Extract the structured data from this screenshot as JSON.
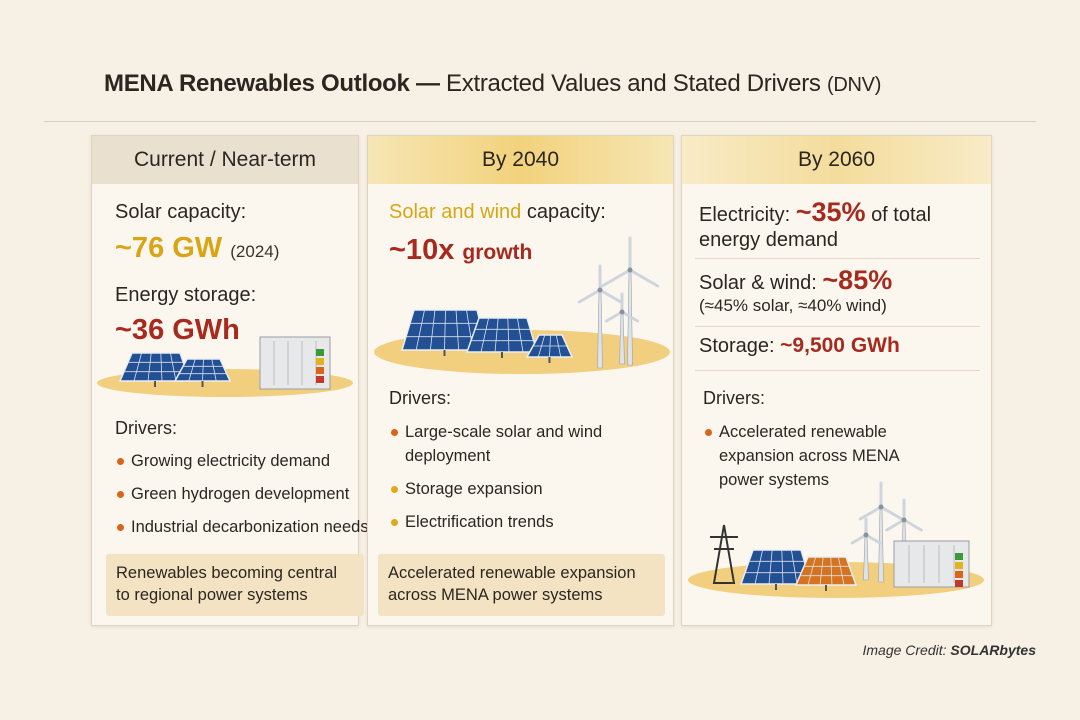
{
  "title": {
    "main": "MENA Renewables Outlook —",
    "sub": "Extracted Values and Stated Drivers",
    "source": "(DNV)"
  },
  "columns": [
    {
      "header": "Current / Near-term",
      "metrics": [
        {
          "label": "Solar capacity:",
          "value": "~76 GW",
          "note": "(2024)"
        },
        {
          "label": "Energy storage:",
          "value": "~36 GWh"
        }
      ],
      "drivers_label": "Drivers:",
      "drivers": [
        "Growing electricity demand",
        "Green hydrogen development",
        "Industrial decarbonization needs"
      ],
      "footer": "Renewables becoming central to regional power systems"
    },
    {
      "header": "By 2040",
      "metrics": [
        {
          "label_highlight": "Solar and wind",
          "label": "capacity:",
          "value": "~10x",
          "note": "growth"
        }
      ],
      "drivers_label": "Drivers:",
      "drivers": [
        "Large-scale solar and wind deployment",
        "Storage expansion",
        "Electrification trends"
      ],
      "footer": "Accelerated renewable expansion across MENA power systems"
    },
    {
      "header": "By 2060",
      "metrics": [
        {
          "label": "Electricity:",
          "value": "~35%",
          "note": "of total energy demand"
        },
        {
          "label": "Solar & wind:",
          "value": "~85%",
          "note": "(≈45% solar, ≈40% wind)"
        },
        {
          "label": "Storage:",
          "value": "~9,500 GWh"
        }
      ],
      "drivers_label": "Drivers:",
      "drivers": [
        "Accelerated renewable expansion across MENA power systems"
      ]
    }
  ],
  "credit": {
    "label": "Image Credit:",
    "source": "SOLARbytes"
  }
}
